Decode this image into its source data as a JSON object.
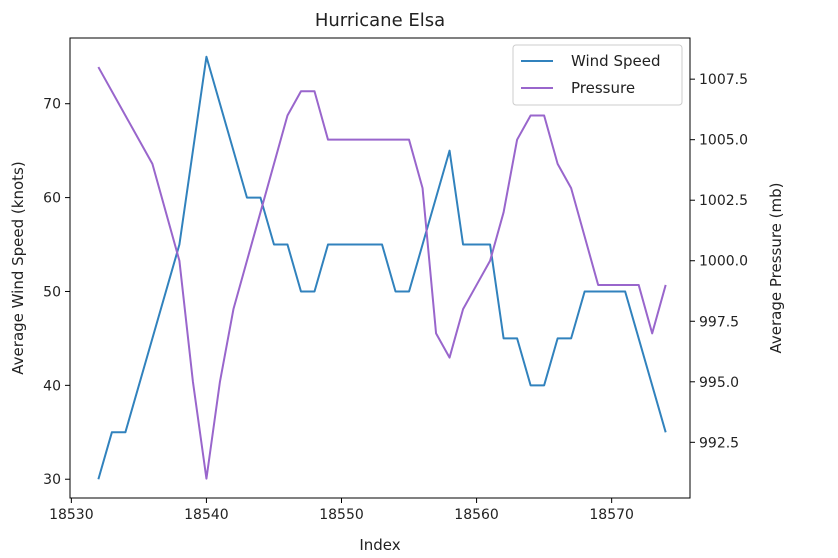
{
  "chart_data": {
    "type": "line",
    "title": "Hurricane Elsa",
    "xlabel": "Index",
    "ylabel_left": "Average Wind Speed (knots)",
    "ylabel_right": "Average Pressure (mb)",
    "xlim": [
      18529.9,
      18575.8
    ],
    "ylim_left": [
      28.0,
      77.0
    ],
    "ylim_right": [
      990.2,
      1009.2
    ],
    "x_ticks": [
      18530,
      18540,
      18550,
      18560,
      18570
    ],
    "y_ticks_left": [
      30,
      40,
      50,
      60,
      70
    ],
    "y_ticks_right": [
      992.5,
      995.0,
      997.5,
      1000.0,
      1002.5,
      1005.0,
      1007.5
    ],
    "y_tick_labels_right": [
      "992.5",
      "995.0",
      "997.5",
      "1000.0",
      "1002.5",
      "1005.0",
      "1007.5"
    ],
    "legend_position": "top-right",
    "grid": false,
    "series": [
      {
        "name": "Wind Speed",
        "axis": "left",
        "color": "#3182bd",
        "x": [
          18532,
          18533,
          18534,
          18536,
          18538,
          18540,
          18542,
          18543,
          18544,
          18545,
          18546,
          18547,
          18548,
          18549,
          18550,
          18551,
          18552,
          18553,
          18554,
          18555,
          18556,
          18558,
          18559,
          18560,
          18561,
          18562,
          18563,
          18564,
          18565,
          18566,
          18567,
          18568,
          18569,
          18570,
          18571,
          18574
        ],
        "values": [
          30,
          35,
          35,
          45,
          55,
          75,
          65,
          60,
          60,
          55,
          55,
          50,
          50,
          55,
          55,
          55,
          55,
          55,
          50,
          50,
          55,
          65,
          55,
          55,
          55,
          45,
          45,
          40,
          40,
          45,
          45,
          50,
          50,
          50,
          50,
          35
        ]
      },
      {
        "name": "Pressure",
        "axis": "right",
        "color": "#9966cc",
        "x": [
          18532,
          18534,
          18536,
          18538,
          18539,
          18540,
          18541,
          18542,
          18544,
          18546,
          18547,
          18548,
          18549,
          18550,
          18551,
          18552,
          18553,
          18554,
          18555,
          18556,
          18557,
          18558,
          18559,
          18560,
          18561,
          18562,
          18563,
          18564,
          18565,
          18566,
          18567,
          18568,
          18569,
          18570,
          18571,
          18572,
          18573,
          18574
        ],
        "values": [
          1008,
          1006,
          1004,
          1000,
          995,
          991,
          995,
          998,
          1002,
          1006,
          1007,
          1007,
          1005,
          1005,
          1005,
          1005,
          1005,
          1005,
          1005,
          1003,
          997,
          996,
          998,
          999,
          1000,
          1002,
          1005,
          1006,
          1006,
          1004,
          1003,
          1001,
          999,
          999,
          999,
          999,
          997,
          999
        ]
      }
    ]
  }
}
